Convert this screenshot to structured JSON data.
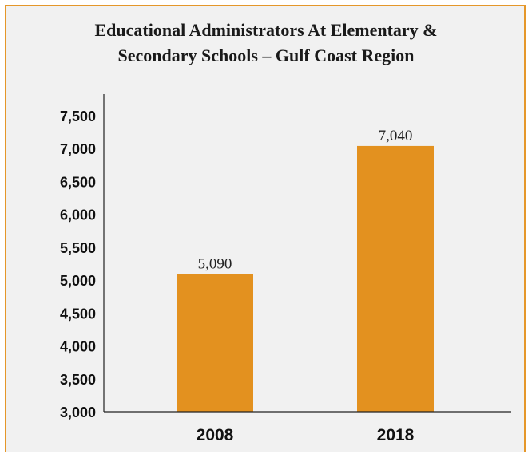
{
  "chart_data": {
    "type": "bar",
    "title_lines": [
      "Educational Administrators At Elementary &",
      "Secondary Schools – Gulf Coast Region"
    ],
    "categories": [
      "2008",
      "2018"
    ],
    "values": [
      5090,
      7040
    ],
    "value_labels": [
      "5,090",
      "7,040"
    ],
    "ylim": [
      3000,
      7500
    ],
    "yticks": [
      3000,
      3500,
      4000,
      4500,
      5000,
      5500,
      6000,
      6500,
      7000,
      7500
    ],
    "ytick_labels": [
      "3,000",
      "3,500",
      "4,000",
      "4,500",
      "5,000",
      "5,500",
      "6,000",
      "6,500",
      "7,000",
      "7,500"
    ],
    "xlabel": "",
    "ylabel": "",
    "grid": false,
    "legend": "none",
    "bar_color": "#e3911f",
    "frame_color": "#e5972a",
    "background_color": "#f1f1f1"
  }
}
